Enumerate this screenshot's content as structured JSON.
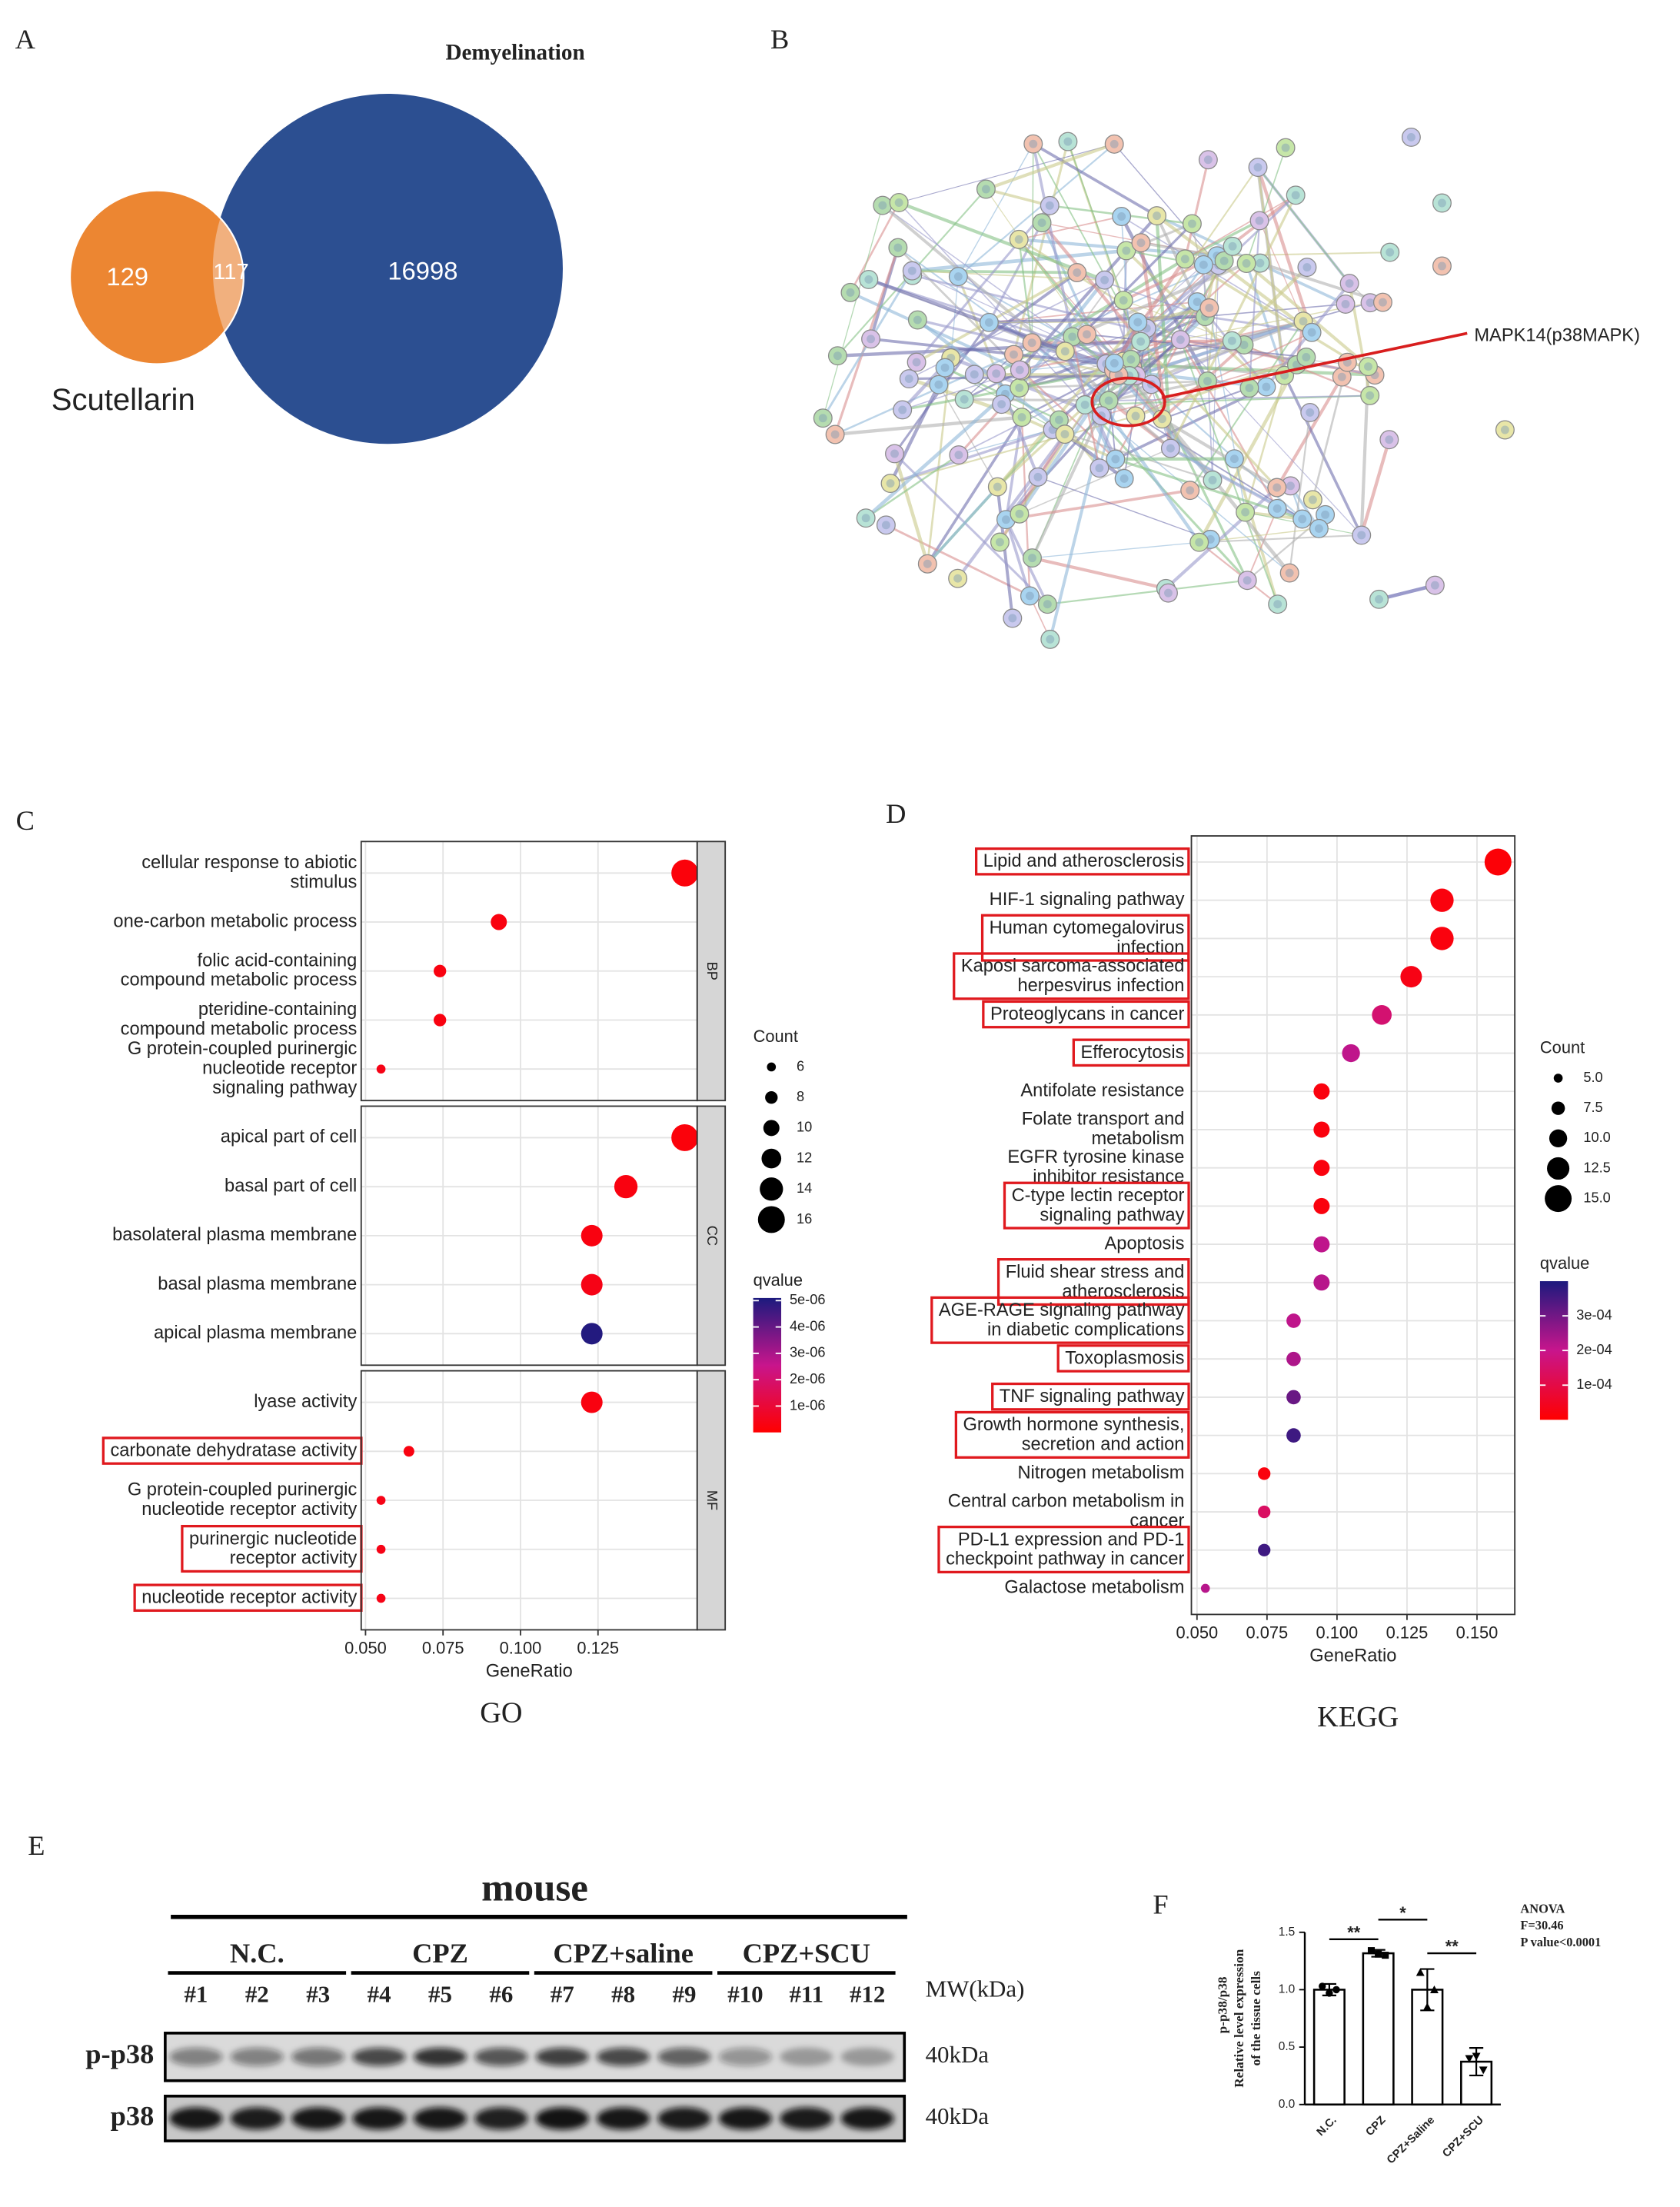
{
  "panel_labels": [
    "A",
    "B",
    "C",
    "D",
    "E",
    "F"
  ],
  "venn": {
    "left": {
      "name": "Scutellarin",
      "count": 129,
      "color": "#ec8632"
    },
    "right": {
      "name": "Demyelination",
      "count": 16998,
      "color": "#2c4f91"
    },
    "overlap": {
      "count": 117,
      "color": "#f1b07e"
    }
  },
  "network": {
    "annotation": "MAPK14(p38MAPK)"
  },
  "chart_data": [
    {
      "type": "dot",
      "caption": "GO",
      "xlabel": "GeneRatio",
      "xlim": [
        0.0486,
        0.157
      ],
      "xticks": [
        {
          "value": 0.05,
          "label": "0.050"
        },
        0.075,
        {
          "value": 0.1,
          "label": "0.100"
        },
        0.125
      ],
      "grid": true,
      "facets": [
        "BP",
        "CC",
        "MF"
      ],
      "facet_of": [
        0,
        0,
        0,
        0,
        0,
        1,
        1,
        1,
        1,
        1,
        2,
        2,
        2,
        2,
        2
      ],
      "terms": [
        [
          "cellular response to abiotic",
          "stimulus"
        ],
        [
          "one-carbon metabolic process"
        ],
        [
          "folic acid-containing",
          "compound metabolic process"
        ],
        [
          "pteridine-containing",
          "compound metabolic process"
        ],
        [
          "G protein-coupled purinergic",
          "nucleotide receptor",
          "signaling pathway"
        ],
        [
          "apical part of cell"
        ],
        [
          "basal part of cell"
        ],
        [
          "basolateral plasma membrane"
        ],
        [
          "basal plasma membrane"
        ],
        [
          "apical plasma membrane"
        ],
        [
          "lyase activity"
        ],
        [
          "carbonate dehydratase activity"
        ],
        [
          "G protein-coupled purinergic",
          "nucleotide receptor activity"
        ],
        [
          "purinergic nucleotide",
          "receptor activity"
        ],
        [
          "nucleotide receptor activity"
        ]
      ],
      "values": [
        0.153,
        0.093,
        0.074,
        0.074,
        0.055,
        0.153,
        0.134,
        0.123,
        0.123,
        0.123,
        0.123,
        0.064,
        0.055,
        0.055,
        0.055
      ],
      "counts": [
        16,
        10,
        8,
        8,
        6,
        16,
        14,
        13,
        13,
        13,
        13,
        7,
        6,
        6,
        6
      ],
      "qvalues": [
        2e-07,
        3e-07,
        3e-07,
        3e-07,
        4e-07,
        2e-07,
        3e-07,
        3e-07,
        4e-07,
        5e-06,
        3e-07,
        3e-07,
        4e-07,
        4e-07,
        4e-07
      ],
      "highlight": [
        false,
        false,
        false,
        false,
        false,
        false,
        false,
        false,
        false,
        false,
        false,
        true,
        false,
        true,
        true
      ],
      "highlight_color": "#e0191e",
      "size_legend": {
        "title": "Count",
        "values": [
          6,
          8,
          10,
          12,
          14,
          16
        ]
      },
      "color_legend": {
        "title": "qvalue",
        "lim": [
          0,
          5.1e-06
        ],
        "ticks": [
          {
            "value": 5e-06,
            "label": "5e-06"
          },
          {
            "value": 4e-06,
            "label": "4e-06"
          },
          {
            "value": 3e-06,
            "label": "3e-06"
          },
          {
            "value": 2e-06,
            "label": "2e-06"
          },
          {
            "value": 1e-06,
            "label": "1e-06"
          }
        ]
      },
      "color_scale": [
        "#ff0000",
        "#c8158c",
        "#1c1a7e"
      ]
    },
    {
      "type": "dot",
      "caption": "KEGG",
      "xlabel": "GeneRatio",
      "xlim": [
        0.048,
        0.1635
      ],
      "xticks": [
        {
          "value": 0.05,
          "label": "0.050"
        },
        0.075,
        {
          "value": 0.1,
          "label": "0.100"
        },
        0.125,
        {
          "value": 0.15,
          "label": "0.150"
        }
      ],
      "grid": true,
      "terms": [
        [
          "Lipid and atherosclerosis"
        ],
        [
          "HIF-1 signaling pathway"
        ],
        [
          "Human cytomegalovirus",
          "infection"
        ],
        [
          "Kaposi sarcoma-associated",
          "herpesvirus infection"
        ],
        [
          "Proteoglycans in cancer"
        ],
        [
          "Efferocytosis"
        ],
        [
          "Antifolate resistance"
        ],
        [
          "Folate transport and",
          "metabolism"
        ],
        [
          "EGFR tyrosine kinase",
          "inhibitor resistance"
        ],
        [
          "C-type lectin receptor",
          "signaling pathway"
        ],
        [
          "Apoptosis"
        ],
        [
          "Fluid shear stress and",
          "atherosclerosis"
        ],
        [
          "AGE-RAGE signaling pathway",
          "in diabetic complications"
        ],
        [
          "Toxoplasmosis"
        ],
        [
          "TNF signaling pathway"
        ],
        [
          "Growth hormone synthesis,",
          "secretion and action"
        ],
        [
          "Nitrogen metabolism"
        ],
        [
          "Central carbon metabolism in",
          "cancer"
        ],
        [
          "PD-L1 expression and PD-1",
          "checkpoint pathway in cancer"
        ],
        [
          "Galactose metabolism"
        ]
      ],
      "values": [
        0.1575,
        0.1375,
        0.1375,
        0.1265,
        0.116,
        0.105,
        0.0945,
        0.0945,
        0.0945,
        0.0945,
        0.0945,
        0.0945,
        0.0845,
        0.0845,
        0.0845,
        0.0845,
        0.074,
        0.074,
        0.074,
        0.053
      ],
      "counts": [
        15,
        13,
        13,
        12,
        11,
        10,
        9,
        9,
        9,
        9,
        9,
        9,
        8,
        8,
        8,
        8,
        7,
        7,
        7,
        5
      ],
      "qvalues": [
        1e-05,
        2e-05,
        2e-05,
        3e-05,
        0.00016,
        0.00021,
        2e-05,
        2e-05,
        2e-05,
        2e-05,
        0.00021,
        0.00022,
        0.00021,
        0.00023,
        0.00031,
        0.00036,
        2e-05,
        0.00014,
        0.00036,
        0.00022
      ],
      "highlight": [
        true,
        false,
        true,
        true,
        true,
        true,
        false,
        false,
        false,
        true,
        false,
        true,
        true,
        true,
        true,
        true,
        false,
        false,
        true,
        false
      ],
      "highlight_color": "#e0191e",
      "size_legend": {
        "title": "Count",
        "values": [
          {
            "value": 5,
            "label": "5.0"
          },
          7.5,
          {
            "value": 10,
            "label": "10.0"
          },
          12.5,
          {
            "value": 15,
            "label": "15.0"
          }
        ]
      },
      "color_legend": {
        "title": "qvalue",
        "lim": [
          0,
          0.0004
        ],
        "ticks": [
          {
            "value": 0.0003,
            "label": "3e-04"
          },
          {
            "value": 0.0002,
            "label": "2e-04"
          },
          {
            "value": 0.0001,
            "label": "1e-04"
          }
        ]
      },
      "color_scale": [
        "#ff0000",
        "#c8158c",
        "#1c1a7e"
      ]
    },
    {
      "type": "bar",
      "ylabel": [
        "p-p38/p38",
        "Relative level expression",
        "of the tissue cells"
      ],
      "categories": [
        "N.C.",
        "CPZ",
        "CPZ+Saline",
        "CPZ+SCU"
      ],
      "values": [
        1.0,
        1.317,
        1.0,
        0.373
      ],
      "errors": [
        0.05,
        0.03,
        0.18,
        0.12
      ],
      "points": [
        [
          1.03,
          0.97,
          1.0
        ],
        [
          1.34,
          1.31,
          1.3
        ],
        [
          1.15,
          0.85,
          1.0
        ],
        [
          0.4,
          0.42,
          0.3
        ]
      ],
      "ylim": [
        0,
        1.5
      ],
      "yticks": [
        {
          "value": 0,
          "label": "0.0"
        },
        0.5,
        {
          "value": 1,
          "label": "1.0"
        },
        1.5
      ],
      "significance": [
        "**",
        "*",
        "**"
      ],
      "annotations": [
        "ANOVA",
        "F=30.46",
        "P value<0.0001"
      ],
      "color": "#ffffff"
    }
  ],
  "blot": {
    "title": "mouse",
    "groups": [
      "N.C.",
      "CPZ",
      "CPZ+saline",
      "CPZ+SCU"
    ],
    "lanes": [
      "#1",
      "#2",
      "#3",
      "#4",
      "#5",
      "#6",
      "#7",
      "#8",
      "#9",
      "#10",
      "#11",
      "#12"
    ],
    "mw_label": "MW(kDa)",
    "rows": [
      {
        "name": "p-p38",
        "mw": "40kDa"
      },
      {
        "name": "p38",
        "mw": "40kDa"
      }
    ]
  }
}
